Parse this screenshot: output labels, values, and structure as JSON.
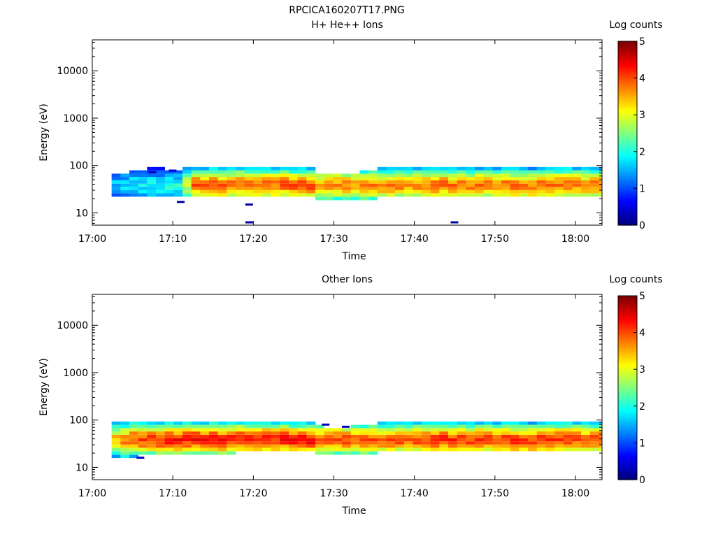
{
  "figure": {
    "title": "RPCICA160207T17.PNG"
  },
  "chart_data": [
    {
      "type": "heatmap",
      "title": "H+ He++ Ions",
      "xlabel": "Time",
      "ylabel": "Energy (eV)",
      "x_ticks": [
        "17:00",
        "17:10",
        "17:20",
        "17:30",
        "17:40",
        "17:50",
        "18:00"
      ],
      "x_range_minutes_after_17": [
        0,
        63.3
      ],
      "y_scale": "log",
      "y_ticks": [
        "10",
        "100",
        "1000",
        "10000"
      ],
      "y_range": [
        5.5,
        45000
      ],
      "colorbar": {
        "label": "Log counts",
        "ticks": [
          "0",
          "1",
          "2",
          "3",
          "4",
          "5"
        ],
        "range": [
          0,
          5
        ],
        "colormap": "jet"
      },
      "data_start_minute": 2.4,
      "profile_energies_eV": [
        17,
        20,
        24,
        28,
        33,
        38,
        45,
        53,
        62,
        73,
        86
      ],
      "columns": [
        {
          "t": 2.4,
          "peak": 1.6,
          "low": 24,
          "high": 65
        },
        {
          "t": 4.5,
          "peak": 1.8,
          "low": 22,
          "high": 75
        },
        {
          "t": 6.5,
          "peak": 1.9,
          "low": 22,
          "high": 85
        },
        {
          "t": 8.5,
          "peak": 1.9,
          "low": 22,
          "high": 85
        },
        {
          "t": 10.5,
          "peak": 2.0,
          "low": 22,
          "high": 80
        },
        {
          "t": 12.0,
          "peak": 3.9,
          "low": 23,
          "high": 95
        },
        {
          "t": 20.0,
          "peak": 3.8,
          "low": 23,
          "high": 95
        },
        {
          "t": 26.5,
          "peak": 4.0,
          "low": 23,
          "high": 95
        },
        {
          "t": 27.5,
          "peak": 3.6,
          "low": 21,
          "high": 70
        },
        {
          "t": 30.0,
          "peak": 3.7,
          "low": 20,
          "high": 65
        },
        {
          "t": 32.5,
          "peak": 3.6,
          "low": 21,
          "high": 70
        },
        {
          "t": 35.0,
          "peak": 3.7,
          "low": 22,
          "high": 85
        },
        {
          "t": 40.0,
          "peak": 3.7,
          "low": 22,
          "high": 90
        },
        {
          "t": 43.0,
          "peak": 3.8,
          "low": 23,
          "high": 95
        },
        {
          "t": 50.0,
          "peak": 3.8,
          "low": 23,
          "high": 95
        },
        {
          "t": 57.0,
          "peak": 3.8,
          "low": 23,
          "high": 95
        },
        {
          "t": 63.3,
          "peak": 3.7,
          "low": 23,
          "high": 95
        }
      ],
      "sparse_points": [
        {
          "t": 7.0,
          "e": 72,
          "v": 0.3
        },
        {
          "t": 9.5,
          "e": 78,
          "v": 0.4
        },
        {
          "t": 10.5,
          "e": 17,
          "v": 0.2
        },
        {
          "t": 19.0,
          "e": 15,
          "v": 0.2
        },
        {
          "t": 19.0,
          "e": 6.3,
          "v": 0.2
        },
        {
          "t": 44.5,
          "e": 6.3,
          "v": 0.2
        }
      ]
    },
    {
      "type": "heatmap",
      "title": "Other Ions",
      "xlabel": "Time",
      "ylabel": "Energy (eV)",
      "x_ticks": [
        "17:00",
        "17:10",
        "17:20",
        "17:30",
        "17:40",
        "17:50",
        "18:00"
      ],
      "x_range_minutes_after_17": [
        0,
        63.3
      ],
      "y_scale": "log",
      "y_ticks": [
        "10",
        "100",
        "1000",
        "10000"
      ],
      "y_range": [
        5.5,
        45000
      ],
      "colorbar": {
        "label": "Log counts",
        "ticks": [
          "0",
          "1",
          "2",
          "3",
          "4",
          "5"
        ],
        "range": [
          0,
          5
        ],
        "colormap": "jet"
      },
      "data_start_minute": 2.4,
      "profile_energies_eV": [
        17,
        20,
        24,
        28,
        33,
        38,
        45,
        53,
        62,
        73,
        86
      ],
      "columns": [
        {
          "t": 2.4,
          "peak": 3.5,
          "low": 17,
          "high": 95
        },
        {
          "t": 4.5,
          "peak": 4.0,
          "low": 18,
          "high": 95
        },
        {
          "t": 10.0,
          "peak": 4.3,
          "low": 21,
          "high": 95
        },
        {
          "t": 20.0,
          "peak": 4.2,
          "low": 22,
          "high": 95
        },
        {
          "t": 26.5,
          "peak": 4.3,
          "low": 22,
          "high": 95
        },
        {
          "t": 28.0,
          "peak": 3.9,
          "low": 20,
          "high": 70
        },
        {
          "t": 30.0,
          "peak": 4.0,
          "low": 19,
          "high": 65
        },
        {
          "t": 32.5,
          "peak": 3.9,
          "low": 21,
          "high": 75
        },
        {
          "t": 35.0,
          "peak": 3.9,
          "low": 22,
          "high": 85
        },
        {
          "t": 40.0,
          "peak": 4.0,
          "low": 22,
          "high": 90
        },
        {
          "t": 43.0,
          "peak": 4.1,
          "low": 23,
          "high": 95
        },
        {
          "t": 50.0,
          "peak": 4.1,
          "low": 23,
          "high": 95
        },
        {
          "t": 57.0,
          "peak": 4.1,
          "low": 23,
          "high": 95
        },
        {
          "t": 63.3,
          "peak": 3.9,
          "low": 23,
          "high": 95
        }
      ],
      "sparse_points": [
        {
          "t": 5.5,
          "e": 16,
          "v": 0.3
        },
        {
          "t": 28.5,
          "e": 80,
          "v": 0.3
        },
        {
          "t": 31.0,
          "e": 72,
          "v": 0.4
        }
      ]
    }
  ]
}
